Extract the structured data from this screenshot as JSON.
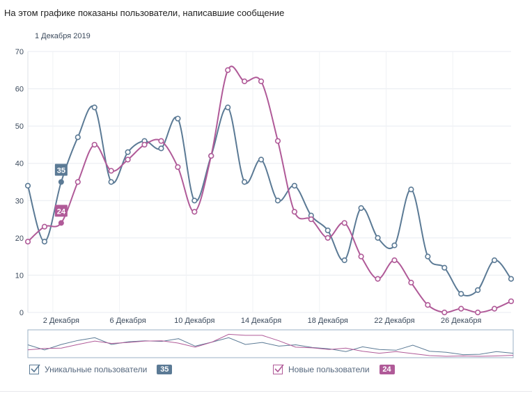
{
  "page": {
    "title": "На этом графике показаны пользователи, написавшие сообщение",
    "date_label": "1 Декабря 2019"
  },
  "colors": {
    "unique": "#5b7a95",
    "new": "#b05a98",
    "grid": "#e8ebf0",
    "axis_text": "#3b4a5c"
  },
  "legend": {
    "unique_label": "Уникальные пользователи",
    "unique_value": "35",
    "new_label": "Новые пользователи",
    "new_value": "24"
  },
  "chart_data": {
    "type": "line",
    "title": "На этом графике показаны пользователи, написавшие сообщение",
    "x": [
      1,
      2,
      3,
      4,
      5,
      6,
      7,
      8,
      9,
      10,
      11,
      12,
      13,
      14,
      15,
      16,
      17,
      18,
      19,
      20,
      21,
      22,
      23,
      24,
      25,
      26,
      27,
      28,
      29,
      30
    ],
    "x_tick_labels": [
      {
        "x": 3,
        "label": "2 Декабря"
      },
      {
        "x": 7,
        "label": "6 Декабря"
      },
      {
        "x": 11,
        "label": "10 Декабря"
      },
      {
        "x": 15,
        "label": "14 Декабря"
      },
      {
        "x": 19,
        "label": "18 Декабря"
      },
      {
        "x": 23,
        "label": "22 Декабря"
      },
      {
        "x": 27,
        "label": "26 Декабря"
      }
    ],
    "ylim": [
      0,
      70
    ],
    "yticks": [
      0,
      10,
      20,
      30,
      40,
      50,
      60,
      70
    ],
    "grid": true,
    "series": [
      {
        "name": "Уникальные пользователи",
        "values": [
          34,
          19,
          35,
          47,
          55,
          35,
          43,
          46,
          44,
          52,
          30,
          42,
          55,
          35,
          41,
          30,
          34,
          26,
          22,
          14,
          28,
          20,
          18,
          33,
          15,
          12,
          5,
          6,
          14,
          9
        ]
      },
      {
        "name": "Новые пользователи",
        "values": [
          19,
          23,
          24,
          35,
          45,
          38,
          41,
          45,
          46,
          39,
          27,
          42,
          65,
          62,
          62,
          46,
          27,
          25,
          20,
          24,
          15,
          9,
          14,
          8,
          2,
          0,
          1,
          0,
          1,
          3
        ]
      }
    ],
    "highlight": {
      "x": 3,
      "unique": 35,
      "new": 24
    },
    "legend_position": "bottom"
  }
}
